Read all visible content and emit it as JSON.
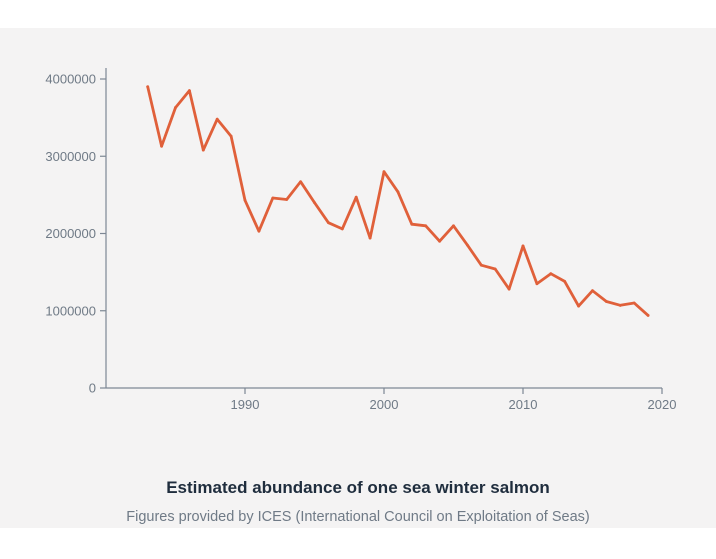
{
  "chart_data": {
    "type": "line",
    "title": "Estimated abundance of one sea winter salmon",
    "subtitle": "Figures provided by ICES (International Council on Exploitation of Seas)",
    "xlabel": "",
    "ylabel": "",
    "xlim": [
      1980,
      2020
    ],
    "ylim": [
      0,
      4000000
    ],
    "x_ticks": [
      1990,
      2000,
      2010,
      2020
    ],
    "y_ticks": [
      0,
      1000000,
      2000000,
      3000000,
      4000000
    ],
    "grid": false,
    "legend": "none",
    "line_color": "#e0603a",
    "series": [
      {
        "x": [
          1983,
          1984,
          1985,
          1986,
          1987,
          1988,
          1989,
          1990,
          1991,
          1992,
          1993,
          1994,
          1995,
          1996,
          1997,
          1998,
          1999,
          2000,
          2001,
          2002,
          2003,
          2004,
          2005,
          2006,
          2007,
          2008,
          2009,
          2010,
          2011,
          2012,
          2013,
          2014,
          2015,
          2016,
          2017,
          2018,
          2019
        ],
        "values": [
          3900000,
          3130000,
          3630000,
          3850000,
          3080000,
          3480000,
          3260000,
          2430000,
          2030000,
          2460000,
          2440000,
          2670000,
          2400000,
          2140000,
          2060000,
          2470000,
          1940000,
          2800000,
          2540000,
          2120000,
          2100000,
          1900000,
          2100000,
          1850000,
          1590000,
          1540000,
          1280000,
          1840000,
          1350000,
          1480000,
          1380000,
          1060000,
          1260000,
          1120000,
          1070000,
          1100000,
          940000
        ]
      }
    ]
  }
}
